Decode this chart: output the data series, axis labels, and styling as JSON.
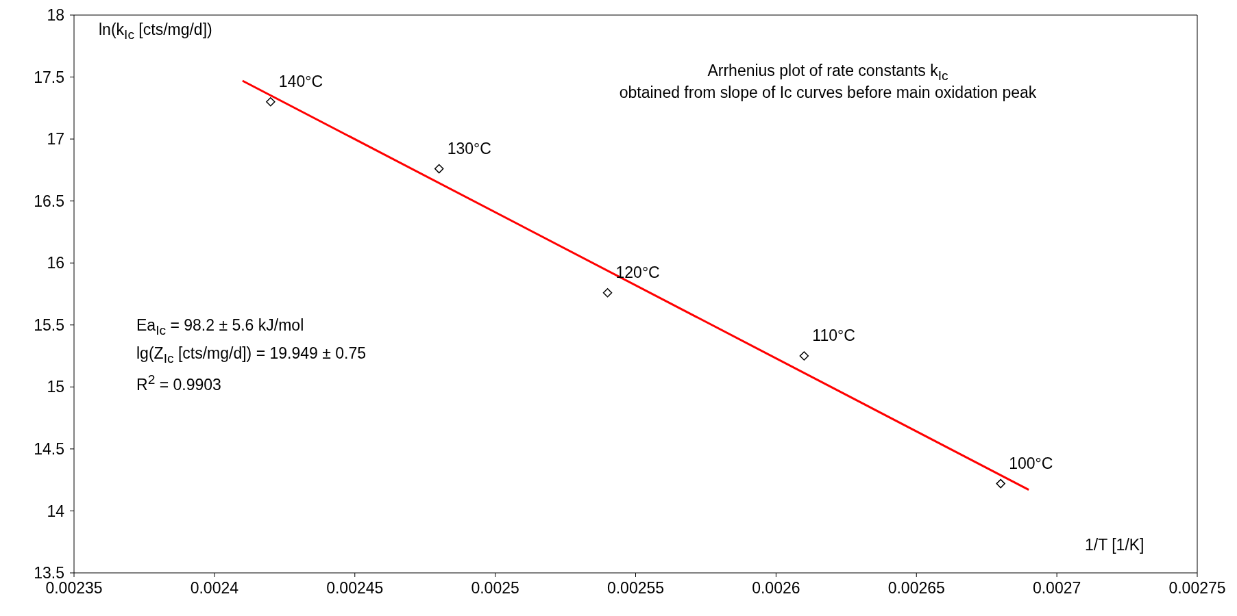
{
  "chart_data": {
    "type": "scatter",
    "title": "Arrhenius plot of rate constants k$_{Ic}$",
    "subtitle": "obtained from slope of Ic curves before main oxidation peak",
    "xlabel": "1/T [1/K]",
    "ylabel": "ln(k$_{Ic}$ [cts/mg/d])",
    "annotations": [
      "Ea$_{Ic}$ = 98.2 ± 5.6 kJ/mol",
      "lg(Z$_{Ic}$ [cts/mg/d]) = 19.949 ± 0.75",
      "R$^{2}$ = 0.9903",
      {
        "text": "140°C",
        "x": 0.00242,
        "y": 17.3
      },
      {
        "text": "130°C",
        "x": 0.00248,
        "y": 16.76
      },
      {
        "text": "120°C",
        "x": 0.00254,
        "y": 15.76
      },
      {
        "text": "110°C",
        "x": 0.00261,
        "y": 15.25
      },
      {
        "text": "100°C",
        "x": 0.00268,
        "y": 14.22
      }
    ],
    "xlim": [
      0.00235,
      0.00275
    ],
    "xticks": [
      0.00235,
      0.0024,
      0.00245,
      0.0025,
      0.00255,
      0.0026,
      0.00265,
      0.0027,
      0.00275
    ],
    "ylim": [
      13.5,
      18
    ],
    "yticks": [
      13.5,
      14,
      14.5,
      15,
      15.5,
      16,
      16.5,
      17,
      17.5,
      18
    ],
    "grid": false,
    "legend": false,
    "marker": "diamond",
    "series": [
      {
        "type": "scatter",
        "color": "#000000",
        "x": [
          0.00242,
          0.00248,
          0.00254,
          0.00261,
          0.00268
        ],
        "values": [
          17.3,
          16.76,
          15.76,
          15.25,
          14.22
        ]
      },
      {
        "type": "line",
        "marker": "none",
        "color": "#ff0000",
        "x": [
          0.00241,
          0.00269
        ],
        "values": [
          17.47,
          14.17
        ]
      }
    ]
  }
}
